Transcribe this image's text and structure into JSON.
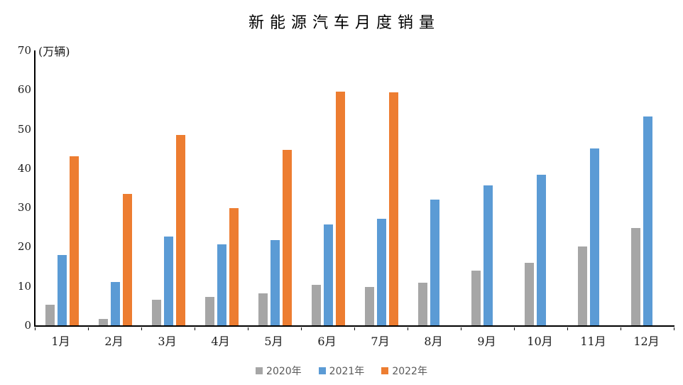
{
  "chart_data": {
    "type": "bar",
    "title": "新能源汽车月度销量",
    "unit_label": "(万辆)",
    "categories": [
      "1月",
      "2月",
      "3月",
      "4月",
      "5月",
      "6月",
      "7月",
      "8月",
      "9月",
      "10月",
      "11月",
      "12月"
    ],
    "series": [
      {
        "name": "2020年",
        "color": "#A6A6A6",
        "values": [
          5.2,
          1.6,
          6.5,
          7.2,
          8.2,
          10.4,
          9.8,
          10.9,
          13.9,
          16.0,
          20.0,
          24.8
        ]
      },
      {
        "name": "2021年",
        "color": "#5B9BD5",
        "values": [
          17.9,
          11.0,
          22.6,
          20.6,
          21.7,
          25.6,
          27.1,
          32.1,
          35.7,
          38.3,
          45.0,
          53.1
        ]
      },
      {
        "name": "2022年",
        "color": "#ED7D31",
        "values": [
          43.1,
          33.4,
          48.4,
          29.9,
          44.7,
          59.6,
          59.3,
          null,
          null,
          null,
          null,
          null
        ]
      }
    ],
    "y_axis": {
      "min": 0,
      "max": 70,
      "step": 10,
      "ticks": [
        0,
        10,
        20,
        30,
        40,
        50,
        60,
        70
      ]
    },
    "grid": false,
    "legend_position": "bottom",
    "axis_color": "#000000",
    "background_color": "#FFFFFF"
  }
}
